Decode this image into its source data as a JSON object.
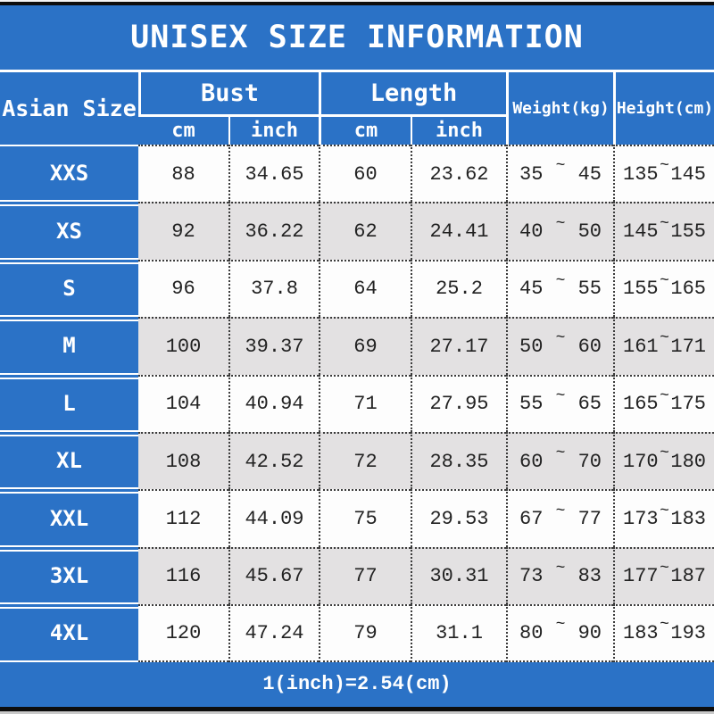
{
  "title": "UNISEX SIZE INFORMATION",
  "header": {
    "size_column": "Asian Size",
    "bust_group": "Bust",
    "length_group": "Length",
    "bust_cm": "cm",
    "bust_inch": "inch",
    "length_cm": "cm",
    "length_inch": "inch",
    "weight_column": "Weight(kg)",
    "height_column": "Height(cm)"
  },
  "symbols": {
    "range_tilde": "~"
  },
  "rows": [
    {
      "size": "XXS",
      "bust_cm": "88",
      "bust_inch": "34.65",
      "length_cm": "60",
      "length_inch": "23.62",
      "weight_min": "35",
      "weight_max": "45",
      "height_min": "135",
      "height_max": "145"
    },
    {
      "size": "XS",
      "bust_cm": "92",
      "bust_inch": "36.22",
      "length_cm": "62",
      "length_inch": "24.41",
      "weight_min": "40",
      "weight_max": "50",
      "height_min": "145",
      "height_max": "155"
    },
    {
      "size": "S",
      "bust_cm": "96",
      "bust_inch": "37.8",
      "length_cm": "64",
      "length_inch": "25.2",
      "weight_min": "45",
      "weight_max": "55",
      "height_min": "155",
      "height_max": "165"
    },
    {
      "size": "M",
      "bust_cm": "100",
      "bust_inch": "39.37",
      "length_cm": "69",
      "length_inch": "27.17",
      "weight_min": "50",
      "weight_max": "60",
      "height_min": "161",
      "height_max": "171"
    },
    {
      "size": "L",
      "bust_cm": "104",
      "bust_inch": "40.94",
      "length_cm": "71",
      "length_inch": "27.95",
      "weight_min": "55",
      "weight_max": "65",
      "height_min": "165",
      "height_max": "175"
    },
    {
      "size": "XL",
      "bust_cm": "108",
      "bust_inch": "42.52",
      "length_cm": "72",
      "length_inch": "28.35",
      "weight_min": "60",
      "weight_max": "70",
      "height_min": "170",
      "height_max": "180"
    },
    {
      "size": "XXL",
      "bust_cm": "112",
      "bust_inch": "44.09",
      "length_cm": "75",
      "length_inch": "29.53",
      "weight_min": "67",
      "weight_max": "77",
      "height_min": "173",
      "height_max": "183"
    },
    {
      "size": "3XL",
      "bust_cm": "116",
      "bust_inch": "45.67",
      "length_cm": "77",
      "length_inch": "30.31",
      "weight_min": "73",
      "weight_max": "83",
      "height_min": "177",
      "height_max": "187"
    },
    {
      "size": "4XL",
      "bust_cm": "120",
      "bust_inch": "47.24",
      "length_cm": "79",
      "length_inch": "31.1",
      "weight_min": "80",
      "weight_max": "90",
      "height_min": "183",
      "height_max": "193"
    }
  ],
  "footer_note": "1(inch)=2.54(cm)",
  "colors": {
    "banner_blue": "#2b72c6",
    "row_white": "#fdfdfd",
    "row_gray": "#e3e1e2",
    "border_dotted": "#3b3b3b",
    "text_dark": "#222222"
  },
  "chart_data": {
    "type": "table",
    "title": "UNISEX SIZE INFORMATION",
    "columns": [
      "Asian Size",
      "Bust cm",
      "Bust inch",
      "Length cm",
      "Length inch",
      "Weight(kg) min",
      "Weight(kg) max",
      "Height(cm) min",
      "Height(cm) max"
    ],
    "rows": [
      [
        "XXS",
        88,
        34.65,
        60,
        23.62,
        35,
        45,
        135,
        145
      ],
      [
        "XS",
        92,
        36.22,
        62,
        24.41,
        40,
        50,
        145,
        155
      ],
      [
        "S",
        96,
        37.8,
        64,
        25.2,
        45,
        55,
        155,
        165
      ],
      [
        "M",
        100,
        39.37,
        69,
        27.17,
        50,
        60,
        161,
        171
      ],
      [
        "L",
        104,
        40.94,
        71,
        27.95,
        55,
        65,
        165,
        175
      ],
      [
        "XL",
        108,
        42.52,
        72,
        28.35,
        60,
        70,
        170,
        180
      ],
      [
        "XXL",
        112,
        44.09,
        75,
        29.53,
        67,
        77,
        173,
        183
      ],
      [
        "3XL",
        116,
        45.67,
        77,
        30.31,
        73,
        83,
        177,
        187
      ],
      [
        "4XL",
        120,
        47.24,
        79,
        31.1,
        80,
        90,
        183,
        193
      ]
    ],
    "footnote": "1(inch)=2.54(cm)"
  }
}
